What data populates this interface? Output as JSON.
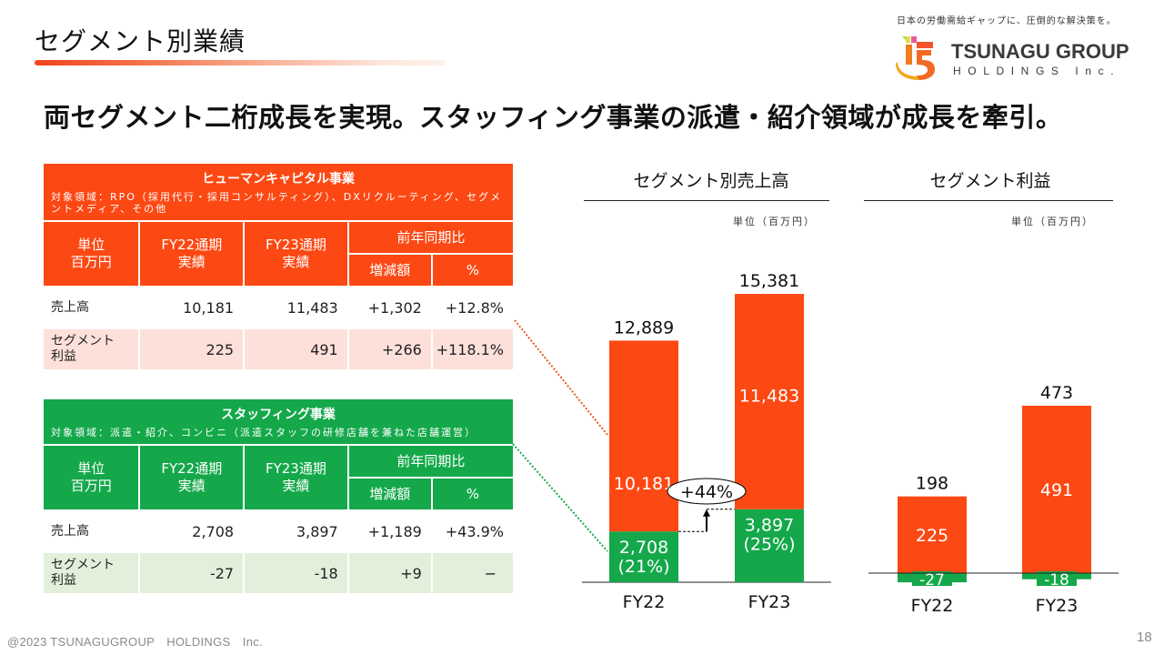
{
  "slide": {
    "title": "セグメント別業績",
    "headline": "両セグメント二桁成長を実現。スタッフィング事業の派遣・紹介領域が成長を牽引。",
    "page_number": "18",
    "copyright": "@2023 TSUNAGUGROUP　HOLDINGS　Inc."
  },
  "brand": {
    "tagline": "日本の労働需給ギャップに、圧倒的な解決策を。",
    "name": "TSUNAGU GROUP",
    "sub": "HOLDINGS Inc.",
    "logo_icon": "tsunagu-logo-mark",
    "colors": {
      "orange": "#fc4813",
      "green": "#14a84a",
      "orange_light": "#fde0da",
      "green_light": "#e2f0db"
    }
  },
  "tables": {
    "human_capital": {
      "name": "ヒューマンキャピタル事業",
      "description": "対象領域：RPO（採用代行・採用コンサルティング）、DXリクルーティング、セグメントメディア、その他",
      "headers": {
        "unit": "単位\n百万円",
        "unit_l1": "単位",
        "unit_l2": "百万円",
        "fy22_l1": "FY22通期",
        "fy22_l2": "実績",
        "fy23_l1": "FY23通期",
        "fy23_l2": "実績",
        "yoy": "前年同期比",
        "diff": "増減額",
        "pct": "%"
      },
      "rows": [
        {
          "label_l1": "売上高",
          "label_l2": "",
          "fy22": "10,181",
          "fy23": "11,483",
          "diff": "+1,302",
          "pct": "+12.8%"
        },
        {
          "label_l1": "セグメント",
          "label_l2": "利益",
          "fy22": "225",
          "fy23": "491",
          "diff": "+266",
          "pct": "+118.1%"
        }
      ]
    },
    "staffing": {
      "name": "スタッフィング事業",
      "description": "対象領域：派遣・紹介、コンビニ（派遣スタッフの研修店舗を兼ねた店舗運営）",
      "headers": {
        "unit_l1": "単位",
        "unit_l2": "百万円",
        "fy22_l1": "FY22通期",
        "fy22_l2": "実績",
        "fy23_l1": "FY23通期",
        "fy23_l2": "実績",
        "yoy": "前年同期比",
        "diff": "増減額",
        "pct": "%"
      },
      "rows": [
        {
          "label_l1": "売上高",
          "label_l2": "",
          "fy22": "2,708",
          "fy23": "3,897",
          "diff": "+1,189",
          "pct": "+43.9%"
        },
        {
          "label_l1": "セグメント",
          "label_l2": "利益",
          "fy22": "-27",
          "fy23": "-18",
          "diff": "+9",
          "pct": "−"
        }
      ]
    }
  },
  "chart_data": [
    {
      "type": "bar",
      "stacked": true,
      "title": "セグメント別売上高",
      "unit_label": "単位（百万円）",
      "categories": [
        "FY22",
        "FY23"
      ],
      "series": [
        {
          "name": "スタッフィング事業",
          "color": "#14a84a",
          "values": [
            2708,
            3897
          ],
          "labels": [
            "2,708\n(21%)",
            "3,897\n(25%)"
          ],
          "labels_l1": [
            "2,708",
            "3,897"
          ],
          "labels_l2": [
            "(21%)",
            "(25%)"
          ]
        },
        {
          "name": "ヒューマンキャピタル事業",
          "color": "#fc4813",
          "values": [
            10181,
            11483
          ],
          "labels": [
            "10,181",
            "11,483"
          ]
        }
      ],
      "totals": [
        12889,
        15381
      ],
      "total_labels": [
        "12,889",
        "15,381"
      ],
      "annotation": {
        "text": "+44%",
        "from": "FY22 スタッフィング",
        "to": "FY23 スタッフィング"
      },
      "ylim": [
        0,
        16500
      ],
      "grid": false,
      "legend": "none"
    },
    {
      "type": "bar",
      "stacked": true,
      "title": "セグメント利益",
      "unit_label": "単位（百万円）",
      "categories": [
        "FY22",
        "FY23"
      ],
      "series": [
        {
          "name": "ヒューマンキャピタル事業",
          "color": "#fc4813",
          "values": [
            225,
            491
          ],
          "labels": [
            "225",
            "491"
          ]
        },
        {
          "name": "スタッフィング事業",
          "color": "#14a84a",
          "values": [
            -27,
            -18
          ],
          "labels": [
            "-27",
            "-18"
          ]
        }
      ],
      "totals": [
        198,
        473
      ],
      "total_labels": [
        "198",
        "473"
      ],
      "ylim": [
        -40,
        520
      ],
      "grid": false,
      "legend": "none"
    }
  ]
}
